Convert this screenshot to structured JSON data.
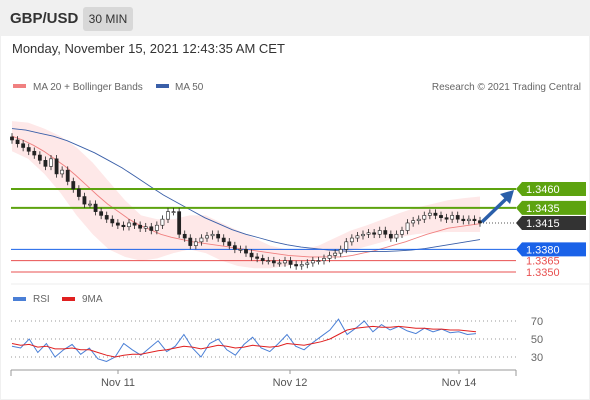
{
  "header": {
    "pair": "GBP/USD",
    "interval": "30 MIN"
  },
  "datetime": "Monday, November 15, 2021 12:43:35 AM CET",
  "credit": "Research © 2021 Trading Central",
  "colors": {
    "resistance": "#5da30f",
    "pivot": "#1a62e8",
    "support": "#e85050",
    "last": "#333333",
    "ma20": "#f08080",
    "ma50": "#3a5fa8",
    "rsi": "#4a7fd6",
    "rsi_ma": "#e02020",
    "arrow": "#2a5faa"
  },
  "chart_data": [
    {
      "type": "candlestick",
      "legend": [
        {
          "name": "MA 20 + Bollinger Bands",
          "color": "#f08080"
        },
        {
          "name": "MA 50",
          "color": "#3a5fa8"
        }
      ],
      "ylim": [
        1.334,
        1.356
      ],
      "x_ticks": [
        "Nov 11",
        "Nov 12",
        "Nov 14"
      ],
      "levels": [
        {
          "value": "1.3460",
          "type": "resistance",
          "labeled": "box"
        },
        {
          "value": "1.3435",
          "type": "resistance",
          "labeled": "box"
        },
        {
          "value": "1.3415",
          "type": "last",
          "labeled": "box"
        },
        {
          "value": "1.3380",
          "type": "pivot",
          "labeled": "box"
        },
        {
          "value": "1.3365",
          "type": "support",
          "labeled": "text"
        },
        {
          "value": "1.3350",
          "type": "support",
          "labeled": "text"
        }
      ],
      "close": [
        1.3525,
        1.352,
        1.3515,
        1.351,
        1.3505,
        1.3498,
        1.349,
        1.35,
        1.348,
        1.3485,
        1.347,
        1.346,
        1.345,
        1.344,
        1.344,
        1.343,
        1.3425,
        1.342,
        1.3415,
        1.3412,
        1.341,
        1.3415,
        1.3412,
        1.3408,
        1.341,
        1.3405,
        1.3412,
        1.342,
        1.343,
        1.343,
        1.34,
        1.3395,
        1.3385,
        1.339,
        1.3395,
        1.3398,
        1.34,
        1.3395,
        1.339,
        1.3385,
        1.338,
        1.338,
        1.3375,
        1.337,
        1.3368,
        1.3365,
        1.3365,
        1.3362,
        1.3362,
        1.3365,
        1.336,
        1.3358,
        1.336,
        1.3362,
        1.3365,
        1.3365,
        1.3368,
        1.3372,
        1.3375,
        1.338,
        1.339,
        1.3395,
        1.3398,
        1.34,
        1.3402,
        1.34,
        1.3405,
        1.34,
        1.3395,
        1.34,
        1.3405,
        1.3415,
        1.3418,
        1.342,
        1.3425,
        1.3428,
        1.3425,
        1.3422,
        1.342,
        1.3425,
        1.342,
        1.3418,
        1.342,
        1.3418,
        1.3415
      ],
      "ma20": [
        1.353,
        1.3525,
        1.3518,
        1.351,
        1.35,
        1.349,
        1.3478,
        1.3465,
        1.3452,
        1.344,
        1.343,
        1.342,
        1.3412,
        1.3406,
        1.34,
        1.3396,
        1.3393,
        1.339,
        1.3388,
        1.3386,
        1.3384,
        1.3382,
        1.338,
        1.3378,
        1.3376,
        1.3374,
        1.3372,
        1.3371,
        1.337,
        1.337,
        1.337,
        1.337,
        1.3372,
        1.3375,
        1.3378,
        1.3382,
        1.3386,
        1.339,
        1.3395,
        1.34,
        1.3404,
        1.3408,
        1.341,
        1.3412,
        1.3414
      ],
      "ma50": [
        1.354,
        1.3538,
        1.3534,
        1.353,
        1.3524,
        1.3516,
        1.3508,
        1.3498,
        1.3488,
        1.3476,
        1.3464,
        1.3452,
        1.3442,
        1.3432,
        1.3422,
        1.3414,
        1.3406,
        1.34,
        1.3395,
        1.339,
        1.3386,
        1.3383,
        1.3381,
        1.3379,
        1.3378,
        1.3377,
        1.3377,
        1.3377,
        1.3378,
        1.3379,
        1.3381,
        1.3384,
        1.3387,
        1.339,
        1.3393
      ],
      "bb_upper": [
        1.355,
        1.3548,
        1.354,
        1.353,
        1.3515,
        1.3495,
        1.347,
        1.3445,
        1.3425,
        1.342,
        1.342,
        1.3425,
        1.3425,
        1.3415,
        1.3405,
        1.3395,
        1.3385,
        1.338,
        1.338,
        1.3385,
        1.3395,
        1.3405,
        1.3412,
        1.342,
        1.3428,
        1.3435,
        1.344,
        1.3445,
        1.3448,
        1.345
      ],
      "bb_lower": [
        1.351,
        1.35,
        1.348,
        1.3455,
        1.3425,
        1.34,
        1.338,
        1.337,
        1.3365,
        1.3368,
        1.3375,
        1.338,
        1.3375,
        1.3365,
        1.3358,
        1.3355,
        1.3355,
        1.3358,
        1.3362,
        1.3368,
        1.3372,
        1.3378,
        1.3384,
        1.339,
        1.3396,
        1.34,
        1.3402,
        1.3403,
        1.3403,
        1.3403
      ]
    },
    {
      "type": "line",
      "legend": [
        {
          "name": "RSI",
          "color": "#4a7fd6"
        },
        {
          "name": "9MA",
          "color": "#e02020"
        }
      ],
      "ylim": [
        20,
        80
      ],
      "y_ticks": [
        "70",
        "50",
        "30"
      ],
      "series": [
        {
          "name": "RSI",
          "values": [
            42,
            40,
            50,
            35,
            45,
            30,
            38,
            44,
            33,
            40,
            28,
            25,
            30,
            45,
            38,
            32,
            40,
            48,
            36,
            42,
            55,
            40,
            30,
            45,
            50,
            38,
            32,
            44,
            52,
            40,
            36,
            45,
            55,
            42,
            38,
            46,
            53,
            60,
            72,
            55,
            62,
            70,
            58,
            66,
            60,
            64,
            59,
            56,
            62,
            58,
            61,
            57,
            58,
            55,
            56
          ]
        },
        {
          "name": "9MA",
          "values": [
            45,
            43,
            44,
            41,
            42,
            39,
            39,
            40,
            38,
            38,
            35,
            32,
            30,
            32,
            33,
            33,
            35,
            37,
            38,
            40,
            42,
            41,
            39,
            41,
            43,
            42,
            40,
            41,
            43,
            42,
            41,
            42,
            45,
            44,
            43,
            45,
            47,
            50,
            55,
            60,
            62,
            63,
            64,
            63,
            63,
            64,
            63,
            62,
            62,
            61,
            61,
            60,
            60,
            59,
            58
          ]
        }
      ]
    }
  ]
}
